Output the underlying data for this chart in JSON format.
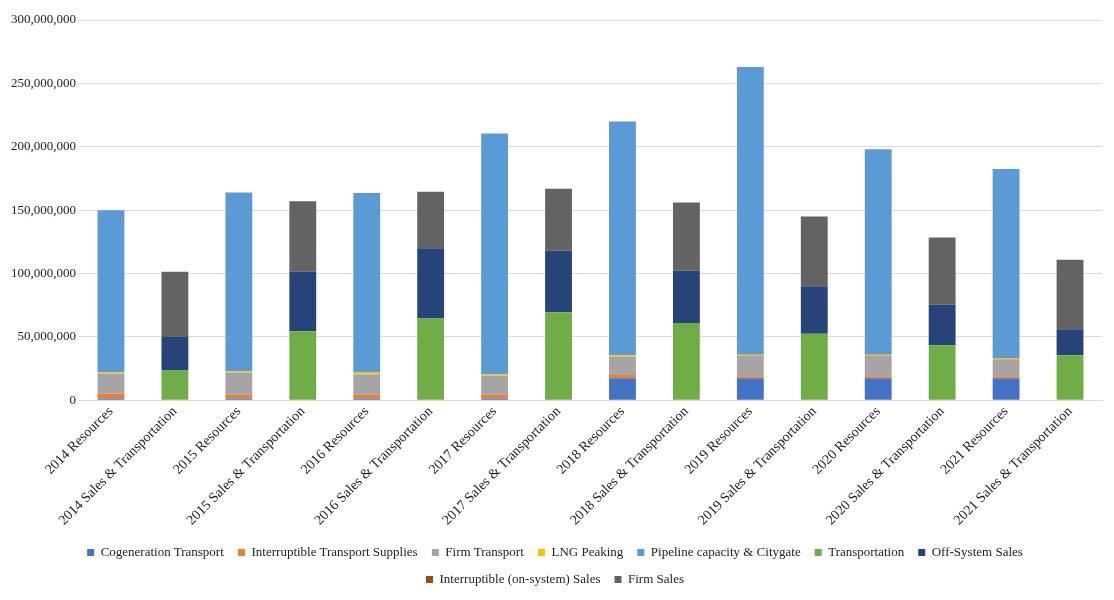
{
  "chart_data": {
    "type": "bar",
    "stacked": true,
    "grid": "y",
    "legend": "bottom",
    "categories": [
      "2014 Resources",
      "2014 Sales & Transportation",
      "2015 Resources",
      "2015 Sales & Transportation",
      "2016 Resources",
      "2016 Sales & Transportation",
      "2017 Resources",
      "2017 Sales & Transportation",
      "2018 Resources",
      "2018 Sales & Transportation",
      "2019 Resources",
      "2019 Sales & Transportation",
      "2020 Resources",
      "2020 Sales & Transportation",
      "2021 Resources",
      "2021 Sales & Transportation"
    ],
    "ylim": [
      0,
      300000000
    ],
    "yticks": [
      {
        "value": 0,
        "label": "0"
      },
      {
        "value": 50000000,
        "label": "50,000,000"
      },
      {
        "value": 100000000,
        "label": "100,000,000"
      },
      {
        "value": 150000000,
        "label": "150,000,000"
      },
      {
        "value": 200000000,
        "label": "200,000,000"
      },
      {
        "value": 250000000,
        "label": "250,000,000"
      },
      {
        "value": 300000000,
        "label": "300,000,000"
      }
    ],
    "series": [
      {
        "name": "Cogeneration Transport",
        "color": "#4472c4",
        "values": [
          1500000,
          null,
          1500000,
          null,
          1500000,
          null,
          1500000,
          null,
          17500000,
          null,
          17500000,
          null,
          17500000,
          null,
          17500000,
          null
        ]
      },
      {
        "name": "Interruptible Transport Supplies",
        "color": "#ed7d31",
        "values": [
          4000000,
          null,
          3000000,
          null,
          3000000,
          null,
          3000000,
          null,
          2500000,
          null,
          1500000,
          null,
          1500000,
          null,
          1500000,
          null
        ]
      },
      {
        "name": "Firm Transport",
        "color": "#a5a5a5",
        "values": [
          15500000,
          null,
          17500000,
          null,
          16000000,
          null,
          15000000,
          null,
          14500000,
          null,
          16000000,
          null,
          16000000,
          null,
          13500000,
          null
        ]
      },
      {
        "name": "LNG Peaking",
        "color": "#ffc000",
        "values": [
          1000000,
          null,
          1000000,
          null,
          1500000,
          null,
          1000000,
          null,
          1000000,
          null,
          1000000,
          null,
          1000000,
          null,
          1000000,
          null
        ]
      },
      {
        "name": "Pipeline capacity & Citygate",
        "color": "#5b9bd5",
        "values": [
          128000000,
          null,
          141000000,
          null,
          141500000,
          null,
          190000000,
          null,
          184500000,
          null,
          227000000,
          null,
          162000000,
          null,
          149000000,
          null
        ]
      },
      {
        "name": "Transportation",
        "color": "#70ad47",
        "values": [
          null,
          23500000,
          null,
          54500000,
          null,
          64500000,
          null,
          69500000,
          null,
          61000000,
          null,
          52500000,
          null,
          43500000,
          null,
          35500000
        ]
      },
      {
        "name": "Off-System Sales",
        "color": "#264478",
        "values": [
          null,
          26500000,
          null,
          47000000,
          null,
          55500000,
          null,
          48500000,
          null,
          41500000,
          null,
          37500000,
          null,
          32000000,
          null,
          20500000
        ]
      },
      {
        "name": "Interruptible (on-system) Sales",
        "color": "#9e480e",
        "values": [
          null,
          0,
          null,
          0,
          null,
          0,
          null,
          0,
          null,
          0,
          null,
          0,
          null,
          0,
          null,
          0
        ]
      },
      {
        "name": "Firm Sales",
        "color": "#636363",
        "values": [
          null,
          51500000,
          null,
          55500000,
          null,
          44500000,
          null,
          49000000,
          null,
          53500000,
          null,
          55000000,
          null,
          53000000,
          null,
          55000000
        ]
      }
    ]
  }
}
